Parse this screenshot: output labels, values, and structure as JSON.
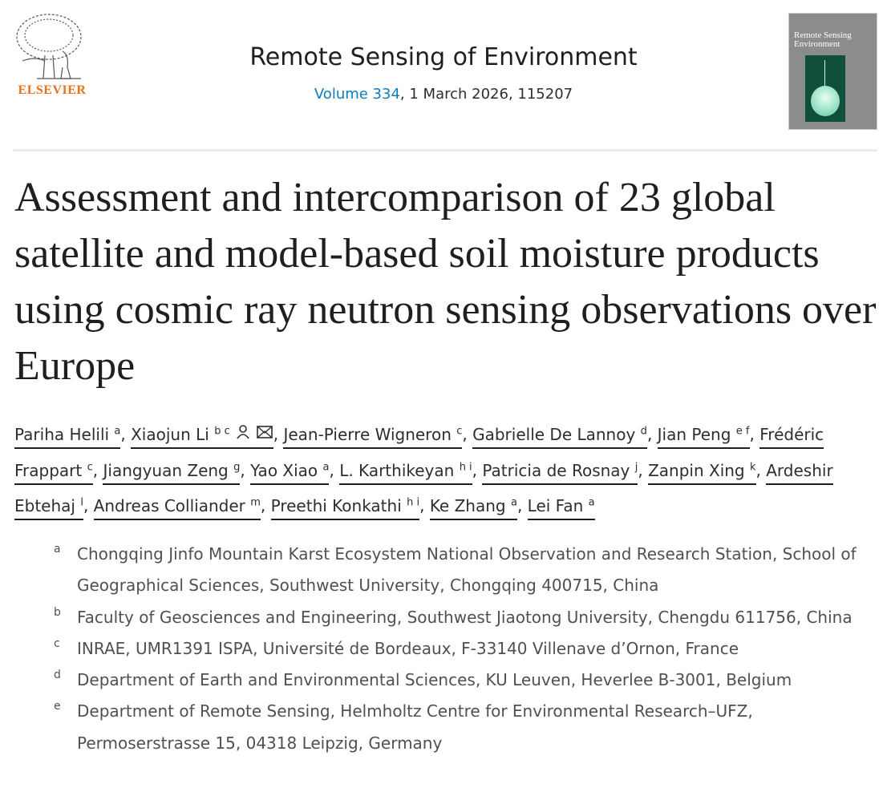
{
  "header": {
    "publisher": "ELSEVIER",
    "journal": "Remote Sensing of Environment",
    "volume_link": "Volume 334",
    "issue_rest": ", 1 March 2026, 115207",
    "cover_title": "Remote Sensing Environment"
  },
  "article": {
    "title": "Assessment and intercomparison of 23 global satellite and model-based soil moisture products using cosmic ray neutron sensing observations over Europe"
  },
  "authors": [
    {
      "name": "Pariha Helili",
      "aff": "a"
    },
    {
      "name": "Xiaojun Li",
      "aff": "b c",
      "icons": [
        "person-icon",
        "envelope-icon"
      ]
    },
    {
      "name": "Jean-Pierre Wigneron",
      "aff": "c"
    },
    {
      "name": "Gabrielle De Lannoy",
      "aff": "d"
    },
    {
      "name": "Jian Peng",
      "aff": "e f"
    },
    {
      "name": "Frédéric Frappart",
      "aff": "c"
    },
    {
      "name": "Jiangyuan Zeng",
      "aff": "g"
    },
    {
      "name": "Yao Xiao",
      "aff": "a"
    },
    {
      "name": "L. Karthikeyan",
      "aff": "h i"
    },
    {
      "name": "Patricia de Rosnay",
      "aff": "j"
    },
    {
      "name": "Zanpin Xing",
      "aff": "k"
    },
    {
      "name": "Ardeshir Ebtehaj",
      "aff": "l"
    },
    {
      "name": "Andreas Colliander",
      "aff": "m"
    },
    {
      "name": "Preethi Konkathi",
      "aff": "h i"
    },
    {
      "name": "Ke Zhang",
      "aff": "a"
    },
    {
      "name": "Lei Fan",
      "aff": "a"
    }
  ],
  "affiliations": [
    {
      "label": "a",
      "text": "Chongqing Jinfo Mountain Karst Ecosystem National Observation and Research Station, School of Geographical Sciences, Southwest University, Chongqing 400715, China"
    },
    {
      "label": "b",
      "text": "Faculty of Geosciences and Engineering, Southwest Jiaotong University, Chengdu 611756, China"
    },
    {
      "label": "c",
      "text": "INRAE, UMR1391 ISPA, Université de Bordeaux, F-33140 Villenave d’Ornon, France"
    },
    {
      "label": "d",
      "text": "Department of Earth and Environmental Sciences, KU Leuven, Heverlee B-3001, Belgium"
    },
    {
      "label": "e",
      "text": "Department of Remote Sensing, Helmholtz Centre for Environmental Research–UFZ, Permoserstrasse 15, 04318 Leipzig, Germany"
    }
  ],
  "colors": {
    "accent_link": "#0c7dbb",
    "publisher_orange": "#e9711c"
  }
}
